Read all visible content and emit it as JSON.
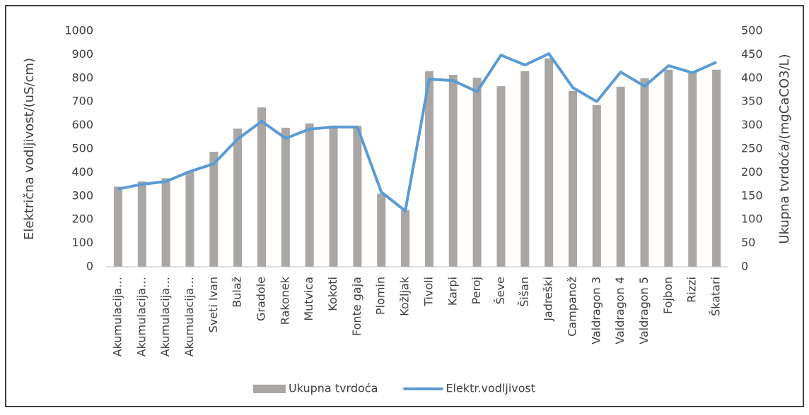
{
  "chart_data": {
    "type": "bar_line",
    "categories": [
      "Akumulacija…",
      "Akumulacija…",
      "Akumulacija…",
      "Akumulacija…",
      "Sveti Ivan",
      "Bulaž",
      "Gradole",
      "Rakonek",
      "Mutvica",
      "Kokoti",
      "Fonte gaja",
      "Plomin",
      "Kožljak",
      "Tivoli",
      "Karpi",
      "Peroj",
      "Ševe",
      "Šišan",
      "Jadreški",
      "Campanož",
      "Valdragon 3",
      "Valdragon 4",
      "Valdragon 5",
      "Fojbon",
      "Rizzi",
      "Škatari"
    ],
    "series": [
      {
        "name": "Ukupna tvrdoća",
        "type": "bar",
        "axis": "y2",
        "color": "#aaa6a4",
        "values": [
          170,
          181,
          188,
          203,
          244,
          293,
          338,
          295,
          304,
          299,
          299,
          155,
          120,
          415,
          407,
          401,
          383,
          415,
          442,
          373,
          343,
          382,
          400,
          418,
          413,
          418
        ]
      },
      {
        "name": "Elektr.vodljivost",
        "type": "line",
        "axis": "y",
        "color": "#5b9bd5",
        "values": [
          330,
          350,
          362,
          404,
          437,
          542,
          617,
          545,
          584,
          593,
          593,
          317,
          237,
          796,
          790,
          743,
          898,
          856,
          904,
          760,
          701,
          826,
          766,
          853,
          823,
          868
        ]
      }
    ],
    "y_label": "Električna vodljivost/(uS/cm)",
    "y2_label": "Ukupna tvrdoća/(mgCaCO3/L)",
    "ylim": [
      0,
      1000
    ],
    "yticks": [
      0,
      100,
      200,
      300,
      400,
      500,
      600,
      700,
      800,
      900,
      1000
    ],
    "y2lim": [
      0,
      500
    ],
    "y2ticks": [
      0,
      50,
      100,
      150,
      200,
      250,
      300,
      350,
      400,
      450,
      500
    ],
    "grid": false,
    "legend": "bottom"
  }
}
